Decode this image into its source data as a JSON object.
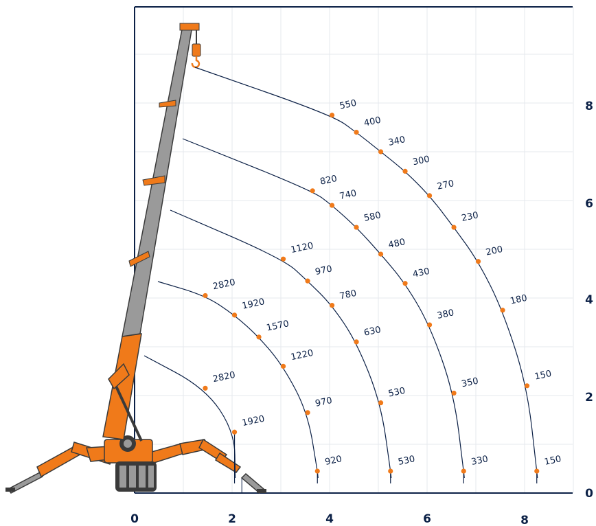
{
  "colors": {
    "frame": "#0b2046",
    "grid": "#e6e8ee",
    "arc": "#0b2046",
    "point": "#f07a1a",
    "crane_orange": "#f07a1a",
    "crane_grey": "#9a9a9a",
    "crane_dark": "#3a3a3a"
  },
  "x_axis": {
    "ticks": [
      "0",
      "2",
      "4",
      "6",
      "8"
    ]
  },
  "y_axis": {
    "ticks": [
      "0",
      "2",
      "4",
      "6",
      "8"
    ]
  },
  "chart_data": {
    "type": "scatter",
    "xlim": [
      0,
      9
    ],
    "ylim": [
      0,
      9.8
    ],
    "grid": true,
    "series": [
      {
        "points": [
          {
            "x": 1.45,
            "y": 2.15,
            "label": "2820"
          },
          {
            "x": 2.05,
            "y": 1.25,
            "label": "1920"
          }
        ]
      },
      {
        "points": [
          {
            "x": 1.45,
            "y": 4.05,
            "label": "2820"
          },
          {
            "x": 2.05,
            "y": 3.65,
            "label": "1920"
          },
          {
            "x": 2.55,
            "y": 3.2,
            "label": "1570"
          },
          {
            "x": 3.05,
            "y": 2.6,
            "label": "1220"
          },
          {
            "x": 3.55,
            "y": 1.65,
            "label": "970"
          },
          {
            "x": 3.75,
            "y": 0.45,
            "label": "920"
          }
        ]
      },
      {
        "points": [
          {
            "x": 3.05,
            "y": 4.8,
            "label": "1120"
          },
          {
            "x": 3.55,
            "y": 4.35,
            "label": "970"
          },
          {
            "x": 4.05,
            "y": 3.85,
            "label": "780"
          },
          {
            "x": 4.55,
            "y": 3.1,
            "label": "630"
          },
          {
            "x": 5.05,
            "y": 1.85,
            "label": "530"
          },
          {
            "x": 5.25,
            "y": 0.45,
            "label": "530"
          }
        ]
      },
      {
        "points": [
          {
            "x": 3.65,
            "y": 6.2,
            "label": "820"
          },
          {
            "x": 4.05,
            "y": 5.9,
            "label": "740"
          },
          {
            "x": 4.55,
            "y": 5.45,
            "label": "580"
          },
          {
            "x": 5.05,
            "y": 4.9,
            "label": "480"
          },
          {
            "x": 5.55,
            "y": 4.3,
            "label": "430"
          },
          {
            "x": 6.05,
            "y": 3.45,
            "label": "380"
          },
          {
            "x": 6.55,
            "y": 2.05,
            "label": "350"
          },
          {
            "x": 6.75,
            "y": 0.45,
            "label": "330"
          }
        ]
      },
      {
        "points": [
          {
            "x": 4.05,
            "y": 7.75,
            "label": "550"
          },
          {
            "x": 4.55,
            "y": 7.4,
            "label": "400"
          },
          {
            "x": 5.05,
            "y": 7.0,
            "label": "340"
          },
          {
            "x": 5.55,
            "y": 6.6,
            "label": "300"
          },
          {
            "x": 6.05,
            "y": 6.1,
            "label": "270"
          },
          {
            "x": 6.55,
            "y": 5.45,
            "label": "230"
          },
          {
            "x": 7.05,
            "y": 4.75,
            "label": "200"
          },
          {
            "x": 7.55,
            "y": 3.75,
            "label": "180"
          },
          {
            "x": 8.05,
            "y": 2.2,
            "label": "150"
          },
          {
            "x": 8.25,
            "y": 0.45,
            "label": "150"
          }
        ]
      }
    ]
  }
}
